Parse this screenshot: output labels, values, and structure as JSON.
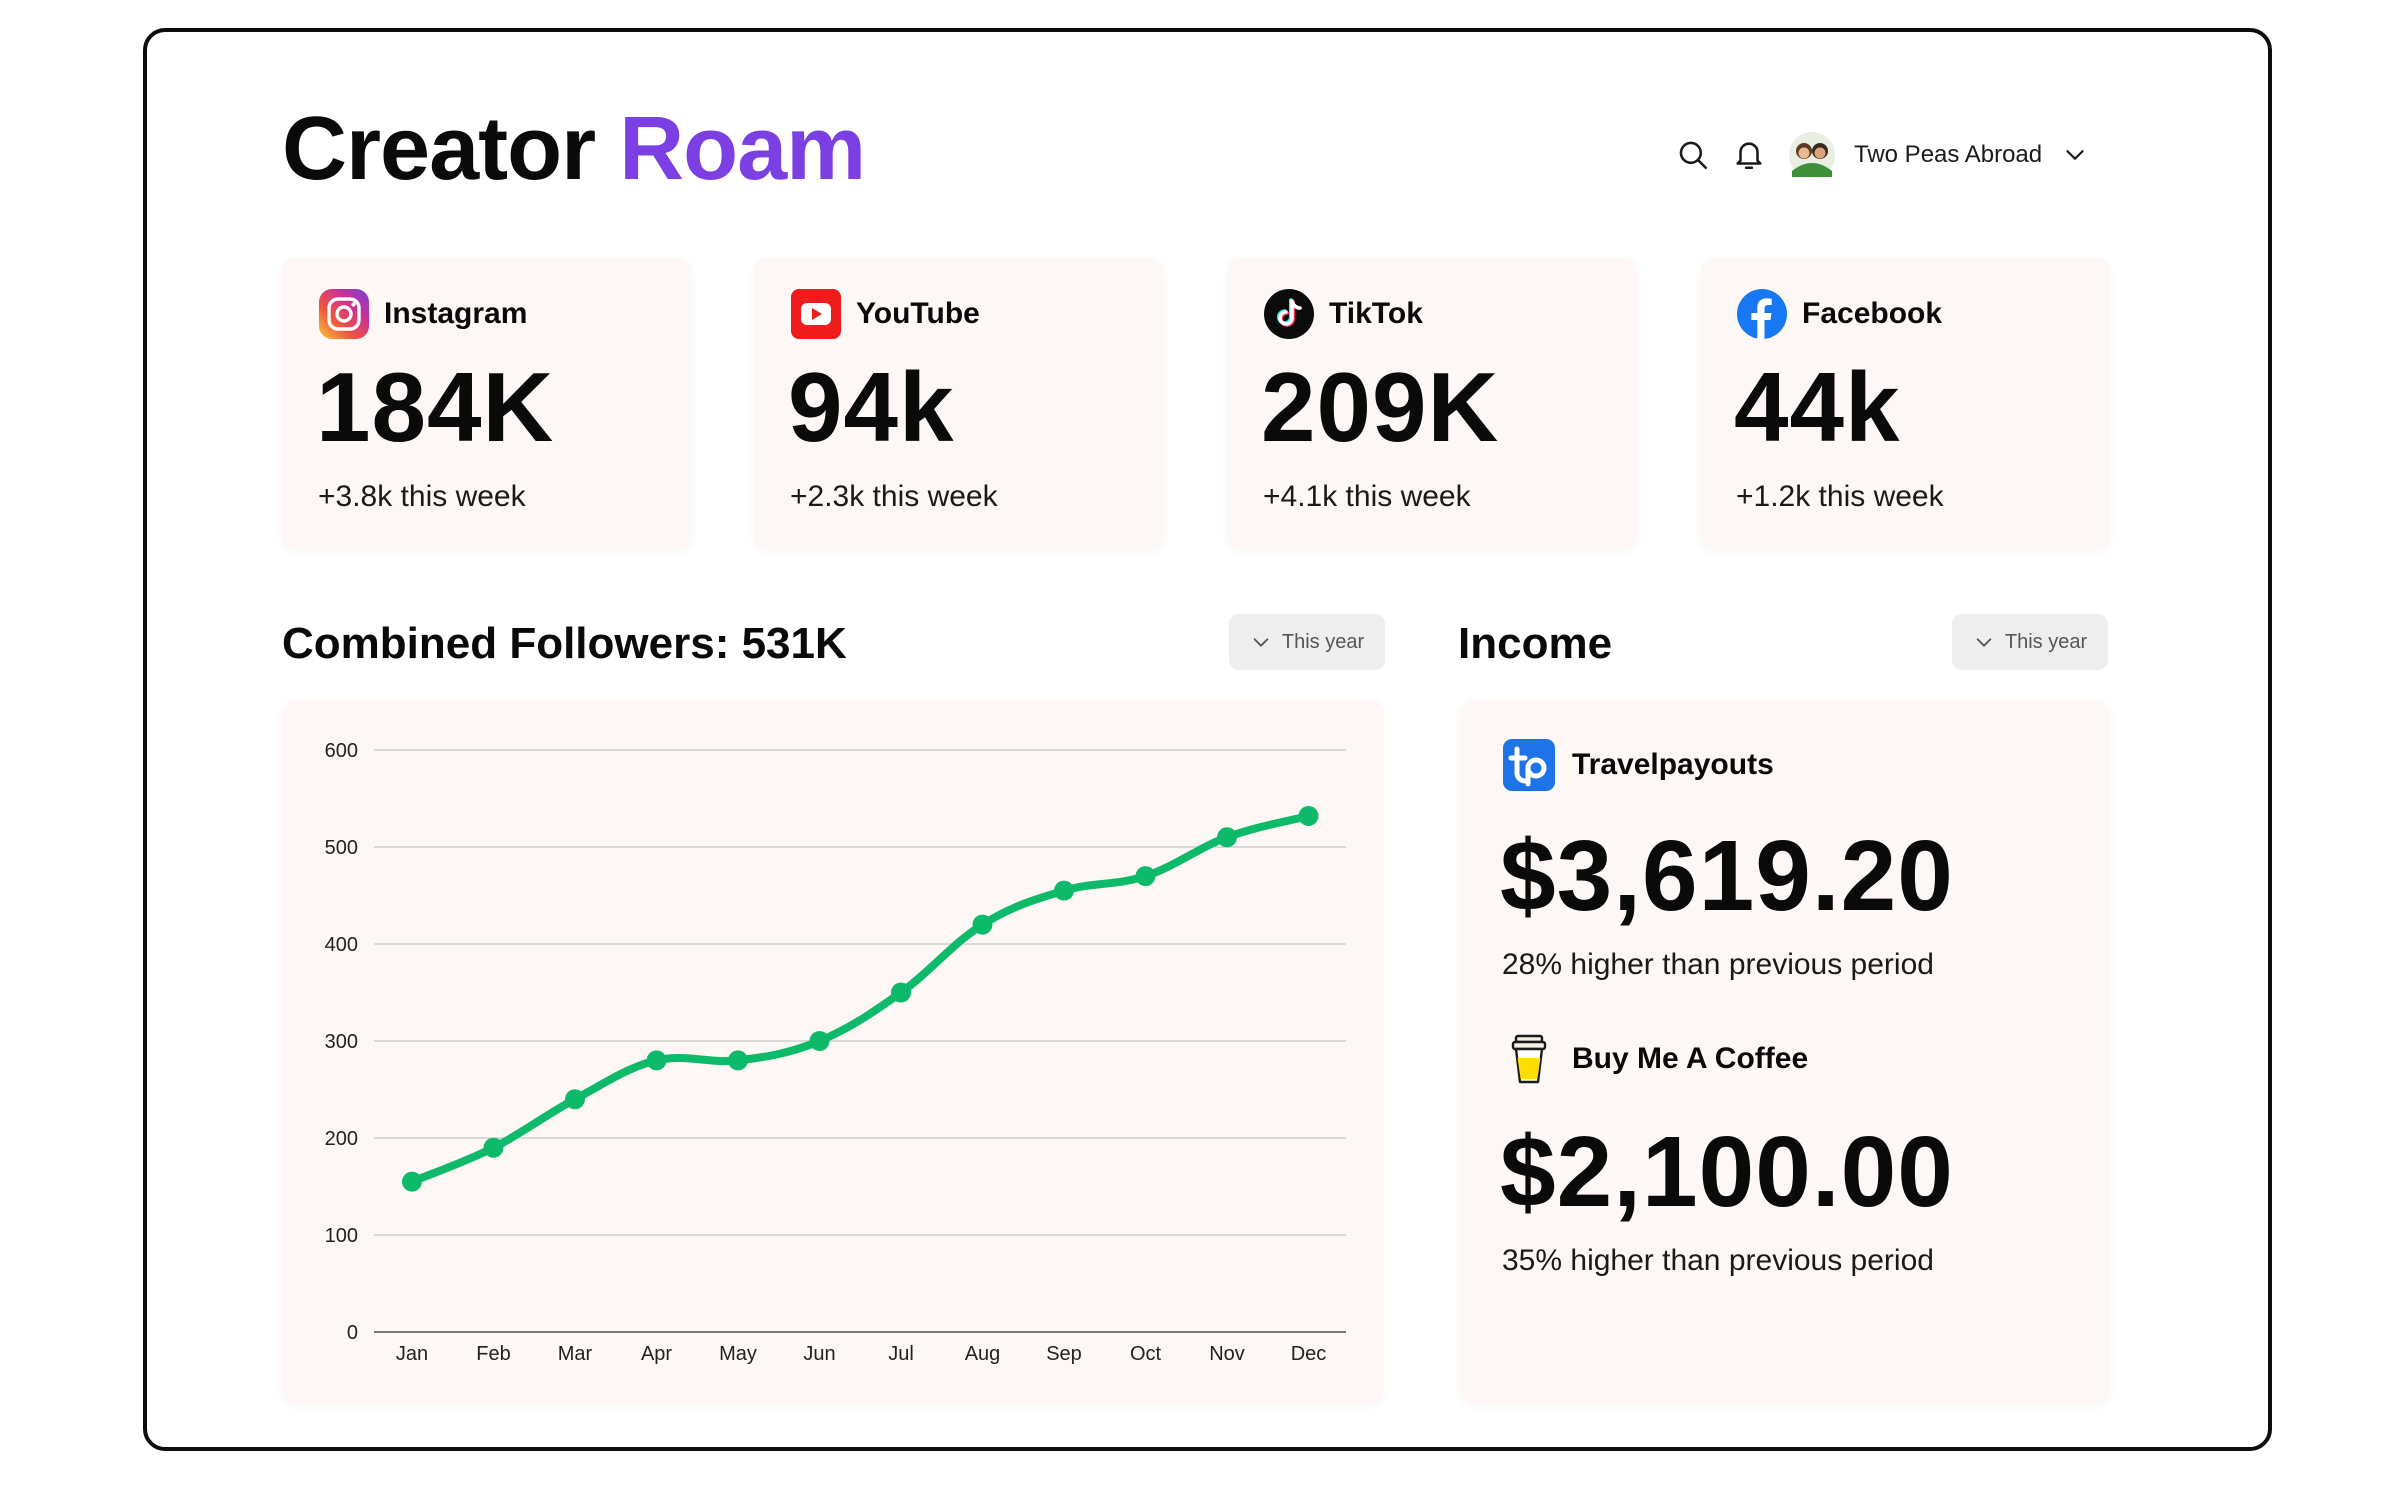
{
  "brand": {
    "first": "Creator",
    "second": "Roam",
    "accent_color": "#7b3fe4"
  },
  "topbar": {
    "search_icon": "search-icon",
    "notifications_icon": "bell-icon",
    "account_name": "Two Peas Abroad",
    "account_menu_icon": "chevron-down-icon"
  },
  "platforms": [
    {
      "name": "Instagram",
      "followers": "184K",
      "delta": "+3.8k this week",
      "icon": "instagram-icon"
    },
    {
      "name": "YouTube",
      "followers": "94k",
      "delta": "+2.3k this week",
      "icon": "youtube-icon"
    },
    {
      "name": "TikTok",
      "followers": "209K",
      "delta": "+4.1k this week",
      "icon": "tiktok-icon"
    },
    {
      "name": "Facebook",
      "followers": "44k",
      "delta": "+1.2k this week",
      "icon": "facebook-icon"
    }
  ],
  "followers_section": {
    "title": "Combined Followers: 531K",
    "range_label": "This year"
  },
  "income_section": {
    "title": "Income",
    "range_label": "This year",
    "sources": [
      {
        "name": "Travelpayouts",
        "amount": "$3,619.20",
        "note": "28% higher than previous period",
        "icon": "travelpayouts-icon"
      },
      {
        "name": "Buy Me A Coffee",
        "amount": "$2,100.00",
        "note": "35% higher than previous period",
        "icon": "coffee-cup-icon"
      }
    ]
  },
  "colors": {
    "line": "#0dba6a",
    "card_bg": "#fdf7f6",
    "grid": "#cfcfcf"
  },
  "chart_data": {
    "type": "line",
    "categories": [
      "Jan",
      "Feb",
      "Mar",
      "Apr",
      "May",
      "Jun",
      "Jul",
      "Aug",
      "Sep",
      "Oct",
      "Nov",
      "Dec"
    ],
    "series": [
      {
        "values": [
          155,
          190,
          240,
          280,
          280,
          300,
          350,
          420,
          455,
          470,
          510,
          532
        ]
      }
    ],
    "ylim": [
      0,
      600
    ],
    "yticks": [
      0,
      100,
      200,
      300,
      400,
      500,
      600
    ],
    "grid": true,
    "legend": "none"
  }
}
